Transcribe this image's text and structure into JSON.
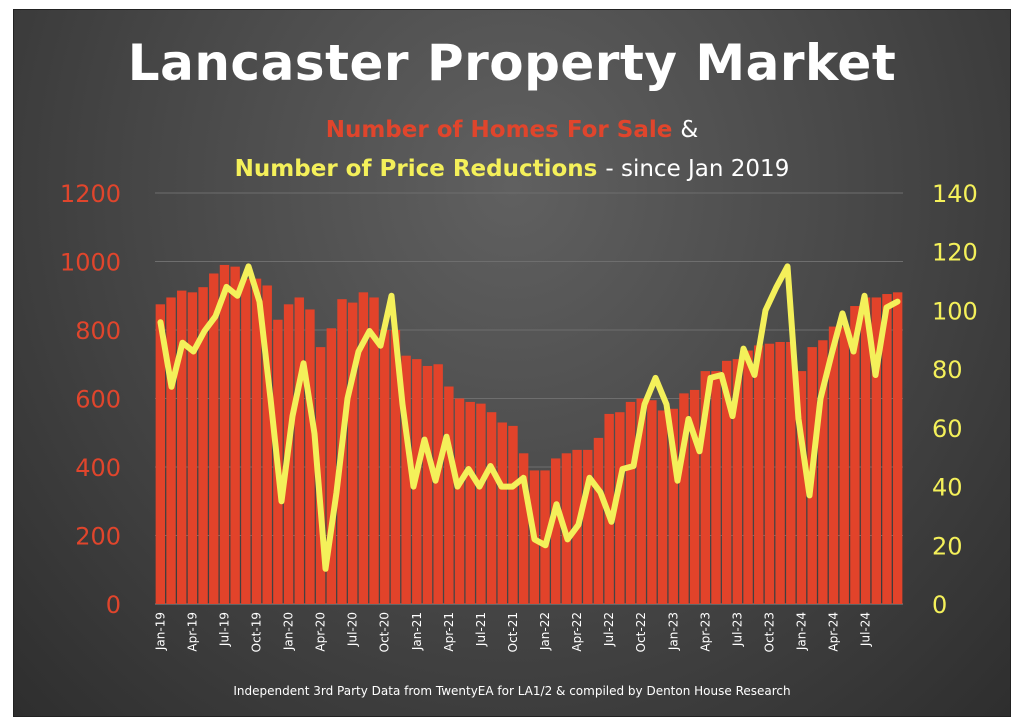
{
  "chart_data": {
    "type": "bar+line",
    "title": "Lancaster Property Market",
    "subtitle_homes": "Number of Homes For Sale",
    "subtitle_amp": "&",
    "subtitle_reductions": "Number of Price Reductions",
    "subtitle_since": "- since Jan 2019",
    "footer": "Independent 3rd Party Data from TwentyEA for LA1/2 & compiled by Denton House Research",
    "y_left": {
      "ticks": [
        "0",
        "200",
        "400",
        "600",
        "800",
        "1000",
        "1200"
      ],
      "range": [
        0,
        1200
      ]
    },
    "y_right": {
      "ticks": [
        "0",
        "20",
        "40",
        "60",
        "80",
        "100",
        "120",
        "140"
      ],
      "range": [
        0,
        140
      ]
    },
    "x_labels": [
      "Jan-19",
      "Apr-19",
      "Jul-19",
      "Oct-19",
      "Jan-20",
      "Apr-20",
      "Jul-20",
      "Oct-20",
      "Jan-21",
      "Apr-21",
      "Jul-21",
      "Oct-21",
      "Jan-22",
      "Apr-22",
      "Jul-22",
      "Oct-22",
      "Jan-23",
      "Apr-23",
      "Jul-23",
      "Oct-23",
      "Jan-24",
      "Apr-24",
      "Jul-24"
    ],
    "homes_for_sale": [
      875,
      895,
      915,
      910,
      925,
      965,
      990,
      985,
      950,
      950,
      930,
      830,
      875,
      895,
      860,
      750,
      805,
      890,
      880,
      910,
      895,
      800,
      800,
      725,
      715,
      695,
      700,
      635,
      600,
      590,
      585,
      560,
      530,
      520,
      440,
      390,
      390,
      425,
      440,
      450,
      450,
      485,
      555,
      560,
      590,
      600,
      595,
      565,
      570,
      615,
      625,
      680,
      680,
      710,
      715,
      740,
      755,
      760,
      765,
      765,
      680,
      750,
      770,
      810,
      810,
      870,
      895,
      895,
      905,
      910
    ],
    "price_reductions": [
      96,
      74,
      89,
      86,
      93,
      98,
      108,
      105,
      115,
      103,
      70,
      35,
      64,
      82,
      58,
      12,
      38,
      70,
      86,
      93,
      88,
      105,
      68,
      40,
      56,
      42,
      57,
      40,
      46,
      40,
      47,
      40,
      40,
      43,
      22,
      20,
      34,
      22,
      27,
      43,
      38,
      28,
      46,
      47,
      68,
      77,
      68,
      42,
      63,
      52,
      77,
      78,
      64,
      87,
      78,
      100,
      108,
      115,
      63,
      37,
      70,
      85,
      99,
      86,
      105,
      78,
      101,
      103
    ]
  }
}
